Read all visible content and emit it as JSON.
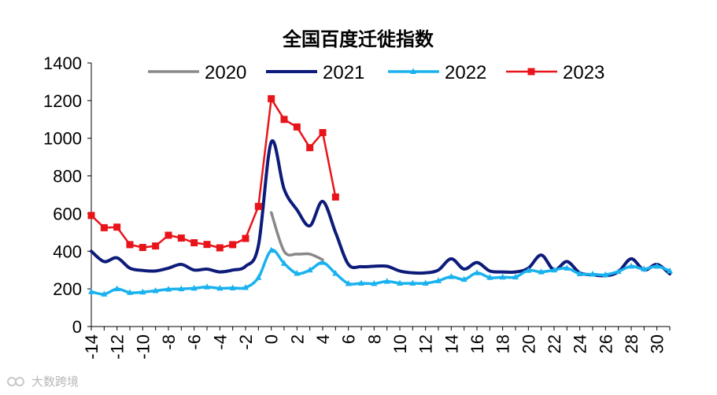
{
  "chart_data": {
    "type": "line",
    "title": "全国百度迁徙指数",
    "xlabel": "",
    "ylabel": "",
    "ylim": [
      0,
      1400
    ],
    "xlim": [
      -14,
      31
    ],
    "yticks": [
      0,
      200,
      400,
      600,
      800,
      1000,
      1200,
      1400
    ],
    "xticks": [
      -14,
      -12,
      -10,
      -8,
      -6,
      -4,
      -2,
      0,
      2,
      4,
      6,
      8,
      10,
      12,
      14,
      16,
      18,
      20,
      22,
      24,
      26,
      28,
      30
    ],
    "legend_position": "top",
    "series": [
      {
        "name": "2020",
        "color": "#888888",
        "marker": "none",
        "x": [
          0,
          1,
          2,
          3,
          4
        ],
        "values": [
          605,
          400,
          385,
          385,
          355
        ]
      },
      {
        "name": "2021",
        "color": "#0d1b7a",
        "marker": "none",
        "x": [
          -14,
          -13,
          -12,
          -11,
          -10,
          -9,
          -8,
          -7,
          -6,
          -5,
          -4,
          -3,
          -2,
          -1,
          0,
          1,
          2,
          3,
          4,
          5,
          6,
          7,
          8,
          9,
          10,
          11,
          12,
          13,
          14,
          15,
          16,
          17,
          18,
          19,
          20,
          21,
          22,
          23,
          24,
          25,
          26,
          27,
          28,
          29,
          30,
          31
        ],
        "values": [
          400,
          345,
          365,
          310,
          298,
          295,
          310,
          330,
          300,
          305,
          290,
          300,
          320,
          430,
          980,
          730,
          620,
          535,
          665,
          500,
          330,
          318,
          320,
          320,
          295,
          285,
          285,
          300,
          360,
          305,
          340,
          295,
          290,
          290,
          310,
          380,
          300,
          345,
          285,
          275,
          270,
          290,
          360,
          300,
          330,
          280
        ]
      },
      {
        "name": "2022",
        "color": "#1ab2ee",
        "marker": "triangle",
        "x": [
          -14,
          -13,
          -12,
          -11,
          -10,
          -9,
          -8,
          -7,
          -6,
          -5,
          -4,
          -3,
          -2,
          -1,
          0,
          1,
          2,
          3,
          4,
          5,
          6,
          7,
          8,
          9,
          10,
          11,
          12,
          13,
          14,
          15,
          16,
          17,
          18,
          19,
          20,
          21,
          22,
          23,
          24,
          25,
          26,
          27,
          28,
          29,
          30,
          31
        ],
        "values": [
          185,
          172,
          200,
          180,
          183,
          190,
          198,
          200,
          203,
          210,
          203,
          205,
          207,
          260,
          405,
          335,
          282,
          300,
          340,
          282,
          228,
          230,
          228,
          240,
          230,
          230,
          230,
          243,
          265,
          250,
          285,
          260,
          262,
          263,
          298,
          290,
          300,
          310,
          280,
          278,
          275,
          292,
          320,
          305,
          320,
          295
        ]
      },
      {
        "name": "2023",
        "color": "#e8141a",
        "marker": "square",
        "x": [
          -14,
          -13,
          -12,
          -11,
          -10,
          -9,
          -8,
          -7,
          -6,
          -5,
          -4,
          -3,
          -2,
          -1,
          0,
          1,
          2,
          3,
          4,
          5
        ],
        "values": [
          590,
          525,
          528,
          435,
          420,
          428,
          485,
          470,
          445,
          436,
          418,
          435,
          468,
          638,
          1210,
          1100,
          1060,
          950,
          1030,
          688
        ]
      }
    ]
  },
  "watermark": {
    "text": "大数跨境"
  }
}
